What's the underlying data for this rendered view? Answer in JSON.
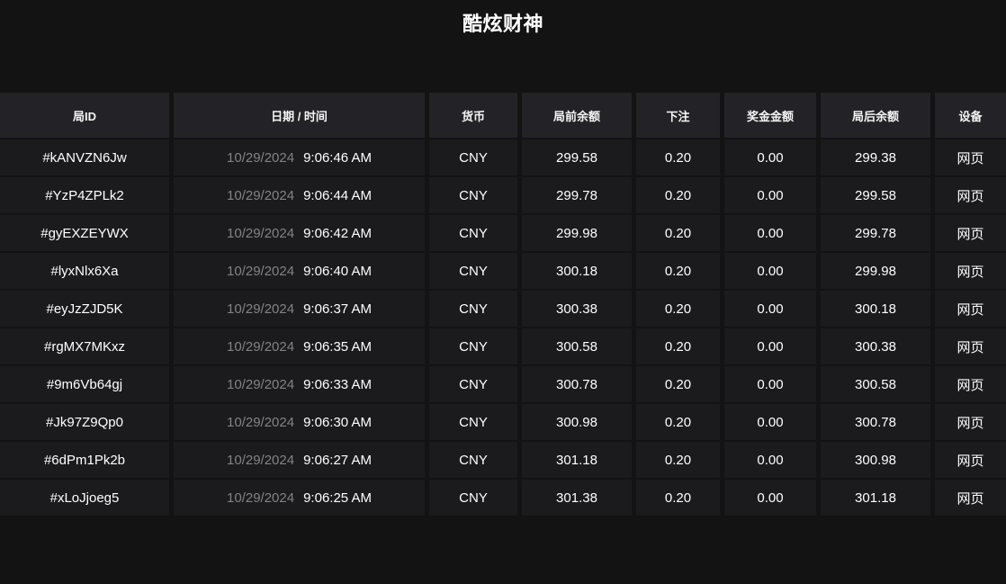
{
  "page": {
    "title": "酷炫财神"
  },
  "colors": {
    "page_background": "#131314",
    "header_cell_background": "#232327",
    "row_cell_background": "#1b1b1d",
    "text_primary": "#ffffff",
    "text_muted_date": "#838385"
  },
  "table": {
    "columns": [
      {
        "key": "round_id",
        "label": "局ID"
      },
      {
        "key": "datetime",
        "label": "日期 / 时间"
      },
      {
        "key": "currency",
        "label": "货币"
      },
      {
        "key": "balance_before",
        "label": "局前余额"
      },
      {
        "key": "bet",
        "label": "下注"
      },
      {
        "key": "win",
        "label": "奖金金额"
      },
      {
        "key": "balance_after",
        "label": "局后余额"
      },
      {
        "key": "device",
        "label": "设备"
      }
    ],
    "rows": [
      {
        "round_id": "#kANVZN6Jw",
        "date": "10/29/2024",
        "time": "9:06:46 AM",
        "currency": "CNY",
        "balance_before": "299.58",
        "bet": "0.20",
        "win": "0.00",
        "balance_after": "299.38",
        "device": "网页"
      },
      {
        "round_id": "#YzP4ZPLk2",
        "date": "10/29/2024",
        "time": "9:06:44 AM",
        "currency": "CNY",
        "balance_before": "299.78",
        "bet": "0.20",
        "win": "0.00",
        "balance_after": "299.58",
        "device": "网页"
      },
      {
        "round_id": "#gyEXZEYWX",
        "date": "10/29/2024",
        "time": "9:06:42 AM",
        "currency": "CNY",
        "balance_before": "299.98",
        "bet": "0.20",
        "win": "0.00",
        "balance_after": "299.78",
        "device": "网页"
      },
      {
        "round_id": "#lyxNlx6Xa",
        "date": "10/29/2024",
        "time": "9:06:40 AM",
        "currency": "CNY",
        "balance_before": "300.18",
        "bet": "0.20",
        "win": "0.00",
        "balance_after": "299.98",
        "device": "网页"
      },
      {
        "round_id": "#eyJzZJD5K",
        "date": "10/29/2024",
        "time": "9:06:37 AM",
        "currency": "CNY",
        "balance_before": "300.38",
        "bet": "0.20",
        "win": "0.00",
        "balance_after": "300.18",
        "device": "网页"
      },
      {
        "round_id": "#rgMX7MKxz",
        "date": "10/29/2024",
        "time": "9:06:35 AM",
        "currency": "CNY",
        "balance_before": "300.58",
        "bet": "0.20",
        "win": "0.00",
        "balance_after": "300.38",
        "device": "网页"
      },
      {
        "round_id": "#9m6Vb64gj",
        "date": "10/29/2024",
        "time": "9:06:33 AM",
        "currency": "CNY",
        "balance_before": "300.78",
        "bet": "0.20",
        "win": "0.00",
        "balance_after": "300.58",
        "device": "网页"
      },
      {
        "round_id": "#Jk97Z9Qp0",
        "date": "10/29/2024",
        "time": "9:06:30 AM",
        "currency": "CNY",
        "balance_before": "300.98",
        "bet": "0.20",
        "win": "0.00",
        "balance_after": "300.78",
        "device": "网页"
      },
      {
        "round_id": "#6dPm1Pk2b",
        "date": "10/29/2024",
        "time": "9:06:27 AM",
        "currency": "CNY",
        "balance_before": "301.18",
        "bet": "0.20",
        "win": "0.00",
        "balance_after": "300.98",
        "device": "网页"
      },
      {
        "round_id": "#xLoJjoeg5",
        "date": "10/29/2024",
        "time": "9:06:25 AM",
        "currency": "CNY",
        "balance_before": "301.38",
        "bet": "0.20",
        "win": "0.00",
        "balance_after": "301.18",
        "device": "网页"
      }
    ]
  }
}
